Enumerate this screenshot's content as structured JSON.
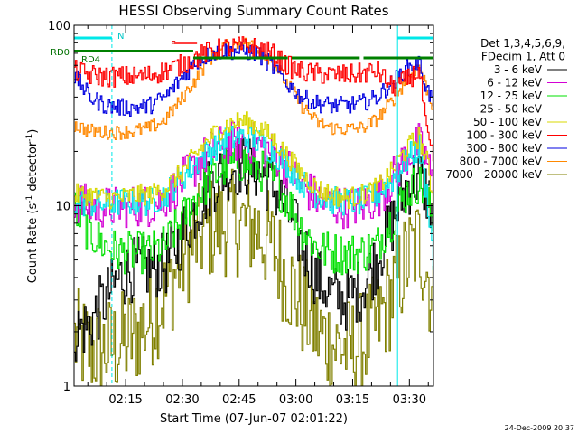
{
  "chart_data": {
    "type": "line",
    "title": "HESSI Observing Summary Count Rates",
    "xlabel": "Start Time (07-Jun-07 02:01:22)",
    "ylabel": "Count Rate (s⁻¹ detector⁻¹)",
    "ylabel_main": "Count Rate (s",
    "ylabel_mid": " detector",
    "ylabel_end": ")",
    "ylabel_sup": "-1",
    "yscale": "log",
    "ylim": [
      1,
      100
    ],
    "xlim_minutes": [
      0,
      95
    ],
    "xtick_labels": [
      "02:15",
      "02:30",
      "02:45",
      "03:00",
      "03:15",
      "03:30"
    ],
    "xtick_minutes": [
      13.63,
      28.63,
      43.63,
      58.63,
      73.63,
      88.63
    ],
    "ytick_labels": [
      "1",
      "10",
      "100"
    ],
    "ytick_values": [
      1,
      10,
      100
    ],
    "legend_header": [
      "Det 1,3,4,5,6,9,",
      "FDecim 1, Att 0"
    ],
    "legend_position": "right",
    "timestamp": "24-Dec-2009 20:37",
    "annotations": {
      "N": "N",
      "F": "F",
      "RD0": "RD0",
      "RD4": "RD4"
    },
    "series": [
      {
        "name": "3 - 6 keV",
        "color": "#000000",
        "values": [
          2.0,
          2.2,
          3.0,
          4.0,
          4.5,
          4.5,
          4.7,
          6.5,
          9.5,
          13.0,
          16.0,
          17.0,
          16.0,
          13.0,
          9.5,
          6.0,
          4.0,
          3.2,
          3.0,
          3.5,
          5.0,
          8.0,
          13.0,
          14.5,
          12.0,
          9.0
        ]
      },
      {
        "name": "6 - 12 keV",
        "color": "#d400d4",
        "values": [
          10.5,
          10.0,
          9.8,
          9.8,
          10.0,
          10.0,
          11.0,
          13.5,
          16.5,
          20.0,
          22.0,
          23.0,
          22.0,
          20.0,
          16.5,
          13.0,
          11.0,
          10.0,
          9.8,
          10.0,
          11.0,
          14.0,
          19.0,
          22.0,
          18.0,
          12.0
        ]
      },
      {
        "name": "12 - 25 keV",
        "color": "#00e000",
        "values": [
          9.5,
          7.0,
          6.0,
          5.5,
          5.5,
          5.5,
          6.0,
          8.0,
          11.0,
          14.0,
          16.5,
          17.5,
          16.5,
          14.0,
          11.0,
          7.5,
          5.8,
          5.5,
          5.4,
          5.5,
          6.0,
          8.5,
          12.0,
          13.5,
          11.0,
          8.0
        ]
      },
      {
        "name": "25 - 50 keV",
        "color": "#00e8e8",
        "values": [
          10.5,
          10.3,
          10.2,
          10.5,
          10.5,
          10.5,
          11.5,
          14.0,
          17.0,
          20.5,
          23.0,
          24.0,
          23.0,
          20.5,
          17.0,
          13.5,
          11.5,
          10.7,
          10.5,
          10.5,
          11.5,
          14.0,
          18.0,
          21.0,
          12.0,
          4.0
        ]
      },
      {
        "name": "50 - 100 keV",
        "color": "#d8d800",
        "values": [
          11.5,
          11.5,
          11.0,
          11.0,
          11.5,
          11.5,
          12.5,
          15.0,
          19.0,
          24.0,
          28.0,
          29.5,
          28.0,
          24.0,
          19.0,
          15.0,
          12.5,
          11.5,
          11.0,
          11.5,
          12.5,
          15.5,
          21.0,
          24.0,
          18.0,
          10.0
        ]
      },
      {
        "name": "100 - 300 keV",
        "color": "#ff0000",
        "values": [
          56.0,
          53.0,
          52.0,
          52.0,
          52.0,
          53.0,
          56.0,
          60.0,
          66.0,
          72.0,
          75.0,
          76.0,
          75.0,
          70.0,
          60.0,
          55.0,
          54.0,
          53.0,
          53.0,
          54.0,
          56.0,
          45.0,
          50.0,
          56.0,
          25.0,
          17.0
        ]
      },
      {
        "name": "300 - 800 keV",
        "color": "#0000e0",
        "values": [
          52.0,
          40.0,
          36.0,
          35.0,
          35.0,
          36.0,
          40.0,
          50.0,
          62.0,
          70.0,
          72.0,
          72.0,
          70.0,
          60.0,
          48.0,
          40.0,
          37.0,
          36.0,
          36.0,
          37.0,
          40.0,
          48.0,
          58.0,
          62.0,
          45.0,
          36.0
        ]
      },
      {
        "name": "800 - 7000 keV",
        "color": "#ff8800",
        "values": [
          28.0,
          26.0,
          25.5,
          25.5,
          26.0,
          27.0,
          30.0,
          38.0,
          50.0,
          66.0,
          76.0,
          80.0,
          76.0,
          64.0,
          48.0,
          36.0,
          29.0,
          27.0,
          26.5,
          27.0,
          30.0,
          38.0,
          50.0,
          60.0,
          45.0,
          34.0
        ]
      },
      {
        "name": "7000 - 20000 keV",
        "color": "#808000",
        "values": [
          1.8,
          1.6,
          1.6,
          1.7,
          1.9,
          2.4,
          3.2,
          4.8,
          6.5,
          7.5,
          8.0,
          8.0,
          7.5,
          6.0,
          4.0,
          2.8,
          2.0,
          1.7,
          1.6,
          1.7,
          2.2,
          3.2,
          5.0,
          6.2,
          4.5,
          2.5
        ]
      }
    ],
    "x_minutes": [
      0,
      4,
      8,
      12,
      16,
      20,
      24,
      28,
      32,
      36,
      40,
      44,
      48,
      52,
      56,
      60,
      64,
      68,
      72,
      76,
      80,
      84,
      88,
      91,
      93,
      95
    ],
    "markers": {
      "saa_color": "#00e8e8",
      "saa_minutes": [
        [
          0,
          10.0
        ],
        [
          85.5,
          95
        ]
      ],
      "saa_vline_minutes": [
        0,
        10.0,
        85.5,
        95
      ],
      "night_color": "#00e8e8",
      "flare_color": "#ff0000",
      "flare_minutes": [
        26.5,
        32.5
      ],
      "decim_color": "#008000",
      "decim_minutes": [
        [
          0,
          31.5
        ],
        [
          31.5,
          95
        ]
      ],
      "decim_levels": [
        72,
        66
      ],
      "decim_gaps": [
        [
          56.5,
          57.5
        ],
        [
          75.5,
          76.5
        ]
      ]
    }
  }
}
